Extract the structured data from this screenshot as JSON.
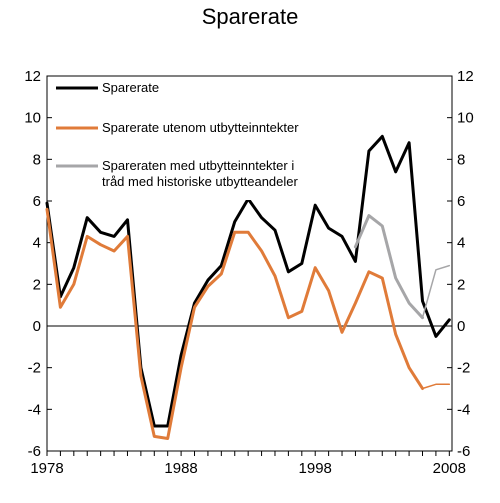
{
  "chart_data": {
    "type": "line",
    "title": "Sparerate",
    "xlabel": "",
    "ylabel": "",
    "xlim": [
      1978,
      2008.2
    ],
    "ylim": [
      -6,
      12
    ],
    "xticks": [
      1978,
      1988,
      1998,
      2008
    ],
    "yticks": [
      -6,
      -4,
      -2,
      0,
      2,
      4,
      6,
      8,
      10,
      12
    ],
    "grid": false,
    "legend_position": "top-left, inside plot",
    "series": [
      {
        "name": "Sparerate",
        "color": "#000000",
        "points": [
          [
            1978,
            5.9
          ],
          [
            1979,
            1.4
          ],
          [
            1980,
            2.8
          ],
          [
            1981,
            5.2
          ],
          [
            1982,
            4.5
          ],
          [
            1983,
            4.3
          ],
          [
            1984,
            5.1
          ],
          [
            1985,
            -2.0
          ],
          [
            1986,
            -4.8
          ],
          [
            1987,
            -4.8
          ],
          [
            1988,
            -1.4
          ],
          [
            1989,
            1.1
          ],
          [
            1990,
            2.2
          ],
          [
            1991,
            2.9
          ],
          [
            1992,
            5.0
          ],
          [
            1993,
            6.1
          ],
          [
            1994,
            5.2
          ],
          [
            1995,
            4.6
          ],
          [
            1996,
            2.6
          ],
          [
            1997,
            3.0
          ],
          [
            1998,
            5.8
          ],
          [
            1999,
            4.7
          ],
          [
            2000,
            4.3
          ],
          [
            2001,
            3.1
          ],
          [
            2002,
            8.4
          ],
          [
            2003,
            9.1
          ],
          [
            2004,
            7.4
          ],
          [
            2005,
            8.8
          ],
          [
            2006,
            1.2
          ],
          [
            2007,
            -0.5
          ],
          [
            2008,
            0.3
          ]
        ]
      },
      {
        "name": "Sparerate utenom utbytteinntekter",
        "color": "#e07b39",
        "points": [
          [
            1978,
            5.6
          ],
          [
            1979,
            0.9
          ],
          [
            1980,
            2.0
          ],
          [
            1981,
            4.3
          ],
          [
            1982,
            3.9
          ],
          [
            1983,
            3.6
          ],
          [
            1984,
            4.3
          ],
          [
            1985,
            -2.4
          ],
          [
            1986,
            -5.3
          ],
          [
            1987,
            -5.4
          ],
          [
            1988,
            -2.0
          ],
          [
            1989,
            0.9
          ],
          [
            1990,
            1.9
          ],
          [
            1991,
            2.5
          ],
          [
            1992,
            4.5
          ],
          [
            1993,
            4.5
          ],
          [
            1994,
            3.6
          ],
          [
            1995,
            2.4
          ],
          [
            1996,
            0.4
          ],
          [
            1997,
            0.7
          ],
          [
            1998,
            2.8
          ],
          [
            1999,
            1.7
          ],
          [
            2000,
            -0.3
          ],
          [
            2001,
            1.1
          ],
          [
            2002,
            2.6
          ],
          [
            2003,
            2.3
          ],
          [
            2004,
            -0.4
          ],
          [
            2005,
            -2.0
          ],
          [
            2006,
            -3.0
          ]
        ]
      },
      {
        "name": "Sparerate utenom utbytteinntekter (tynn)",
        "color": "#e07b39",
        "points": [
          [
            2006,
            -3.0
          ],
          [
            2007,
            -2.8
          ],
          [
            2008,
            -2.8
          ]
        ]
      },
      {
        "name": "Spareraten med utbytteinntekter i tråd med historiske utbytteandeler",
        "color": "#a6a6a8",
        "points": [
          [
            2001,
            3.8
          ],
          [
            2002,
            5.3
          ],
          [
            2003,
            4.8
          ],
          [
            2004,
            2.3
          ],
          [
            2005,
            1.1
          ],
          [
            2006,
            0.4
          ]
        ]
      },
      {
        "name": "Spareraten med utbytteinntekter i tråd med historiske utbytteandeler (tynn)",
        "color": "#a6a6a8",
        "points": [
          [
            2006,
            0.4
          ],
          [
            2007,
            2.7
          ],
          [
            2008,
            2.9
          ]
        ]
      }
    ],
    "legend": [
      {
        "label": "Sparerate",
        "color": "#000000"
      },
      {
        "label": "Sparerate utenom utbytteinntekter",
        "color": "#e07b39"
      },
      {
        "label_lines": [
          "Spareraten med utbytteinntekter i",
          "tråd med historiske utbytteandeler"
        ],
        "color": "#a6a6a8"
      }
    ]
  }
}
